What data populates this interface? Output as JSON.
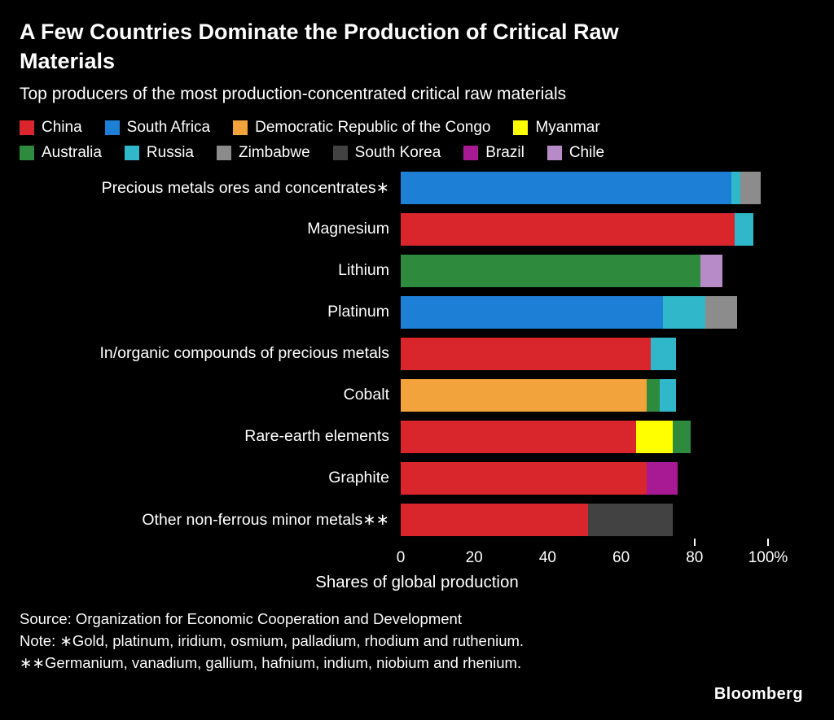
{
  "chart_data": {
    "type": "bar",
    "orientation": "horizontal",
    "stacked": true,
    "unit": "%",
    "title": "A Few Countries Dominate the Production of Critical Raw Materials",
    "subtitle": "Top producers of the most production-concentrated critical raw materials",
    "xlabel": "Shares of global production",
    "xlim": [
      0,
      100
    ],
    "xticks": [
      0,
      20,
      40,
      60,
      80,
      100
    ],
    "xtick_labels": [
      "0",
      "20",
      "40",
      "60",
      "80",
      "100%"
    ],
    "tick_marks": [
      80,
      100
    ],
    "grid": false,
    "legend_position": "top",
    "colors": {
      "China": "#d8262c",
      "South Africa": "#1e7fd6",
      "Democratic Republic of the Congo": "#f2a33c",
      "Myanmar": "#ffff00",
      "Australia": "#2e8b3d",
      "Russia": "#30b7c9",
      "Zimbabwe": "#8c8c8c",
      "South Korea": "#424242",
      "Brazil": "#a81a94",
      "Chile": "#b78bc7"
    },
    "legend_rows": [
      [
        "China",
        "South Africa",
        "Democratic Republic of the Congo",
        "Myanmar"
      ],
      [
        "Australia",
        "Russia",
        "Zimbabwe",
        "South Korea",
        "Brazil",
        "Chile"
      ]
    ],
    "categories": [
      "Precious metals ores and concentrates∗",
      "Magnesium",
      "Lithium",
      "Platinum",
      "In/organic compounds of precious metals",
      "Cobalt",
      "Rare-earth elements",
      "Graphite",
      "Other non-ferrous minor metals∗∗"
    ],
    "bars": [
      {
        "category": "Precious metals ores and concentrates∗",
        "segments": [
          {
            "country": "South Africa",
            "value": 90
          },
          {
            "country": "Russia",
            "value": 2.5
          },
          {
            "country": "Zimbabwe",
            "value": 5.5
          }
        ]
      },
      {
        "category": "Magnesium",
        "segments": [
          {
            "country": "China",
            "value": 91
          },
          {
            "country": "Russia",
            "value": 5
          }
        ]
      },
      {
        "category": "Lithium",
        "segments": [
          {
            "country": "Australia",
            "value": 81.5
          },
          {
            "country": "Chile",
            "value": 6
          }
        ]
      },
      {
        "category": "Platinum",
        "segments": [
          {
            "country": "South Africa",
            "value": 71.5
          },
          {
            "country": "Russia",
            "value": 11.5
          },
          {
            "country": "Zimbabwe",
            "value": 8.5
          }
        ]
      },
      {
        "category": "In/organic compounds of precious metals",
        "segments": [
          {
            "country": "China",
            "value": 68
          },
          {
            "country": "Russia",
            "value": 7
          }
        ]
      },
      {
        "category": "Cobalt",
        "segments": [
          {
            "country": "Democratic Republic of the Congo",
            "value": 67
          },
          {
            "country": "Australia",
            "value": 3.5
          },
          {
            "country": "Russia",
            "value": 4.5
          }
        ]
      },
      {
        "category": "Rare-earth elements",
        "segments": [
          {
            "country": "China",
            "value": 64
          },
          {
            "country": "Myanmar",
            "value": 10
          },
          {
            "country": "Australia",
            "value": 5
          }
        ]
      },
      {
        "category": "Graphite",
        "segments": [
          {
            "country": "China",
            "value": 67
          },
          {
            "country": "Brazil",
            "value": 8.5
          }
        ]
      },
      {
        "category": "Other non-ferrous minor metals∗∗",
        "segments": [
          {
            "country": "China",
            "value": 51
          },
          {
            "country": "South Korea",
            "value": 23
          }
        ]
      }
    ]
  },
  "footer": {
    "source": "Source: Organization for Economic Cooperation and Development",
    "note1": "Note: ∗Gold, platinum, iridium, osmium, palladium, rhodium and ruthenium.",
    "note2": "∗∗Germanium, vanadium, gallium, hafnium, indium, niobium and rhenium.",
    "brand": "Bloomberg"
  }
}
